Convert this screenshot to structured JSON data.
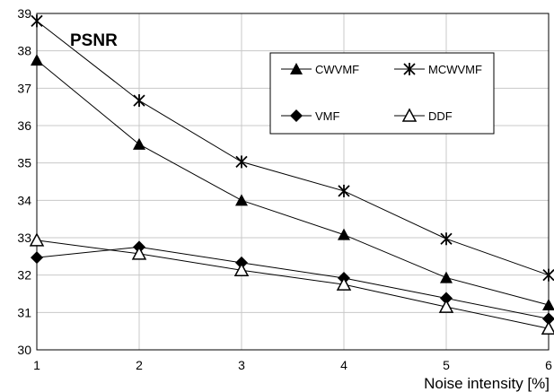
{
  "chart_data": {
    "type": "line",
    "title": "PSNR",
    "xlabel": "Noise intensity [%]",
    "ylabel": "",
    "x": [
      1,
      2,
      3,
      4,
      5,
      6
    ],
    "xlim": [
      1,
      6
    ],
    "ylim": [
      30,
      39
    ],
    "yticks": [
      30,
      31,
      32,
      33,
      34,
      35,
      36,
      37,
      38,
      39
    ],
    "xticks": [
      1,
      2,
      3,
      4,
      5,
      6
    ],
    "grid": true,
    "legend_position": "top-right",
    "series": [
      {
        "name": "CWVMF",
        "marker": "filled-triangle",
        "values": [
          37.75,
          35.5,
          34.0,
          33.08,
          31.93,
          31.2
        ]
      },
      {
        "name": "MCWVMF",
        "marker": "asterisk",
        "values": [
          38.8,
          36.67,
          35.03,
          34.25,
          32.97,
          32.0
        ]
      },
      {
        "name": "VMF",
        "marker": "filled-diamond",
        "values": [
          32.47,
          32.75,
          32.33,
          31.92,
          31.38,
          30.83
        ]
      },
      {
        "name": "DDF",
        "marker": "open-triangle",
        "values": [
          32.93,
          32.57,
          32.13,
          31.75,
          31.15,
          30.57
        ]
      }
    ],
    "line_color": "#000000"
  }
}
